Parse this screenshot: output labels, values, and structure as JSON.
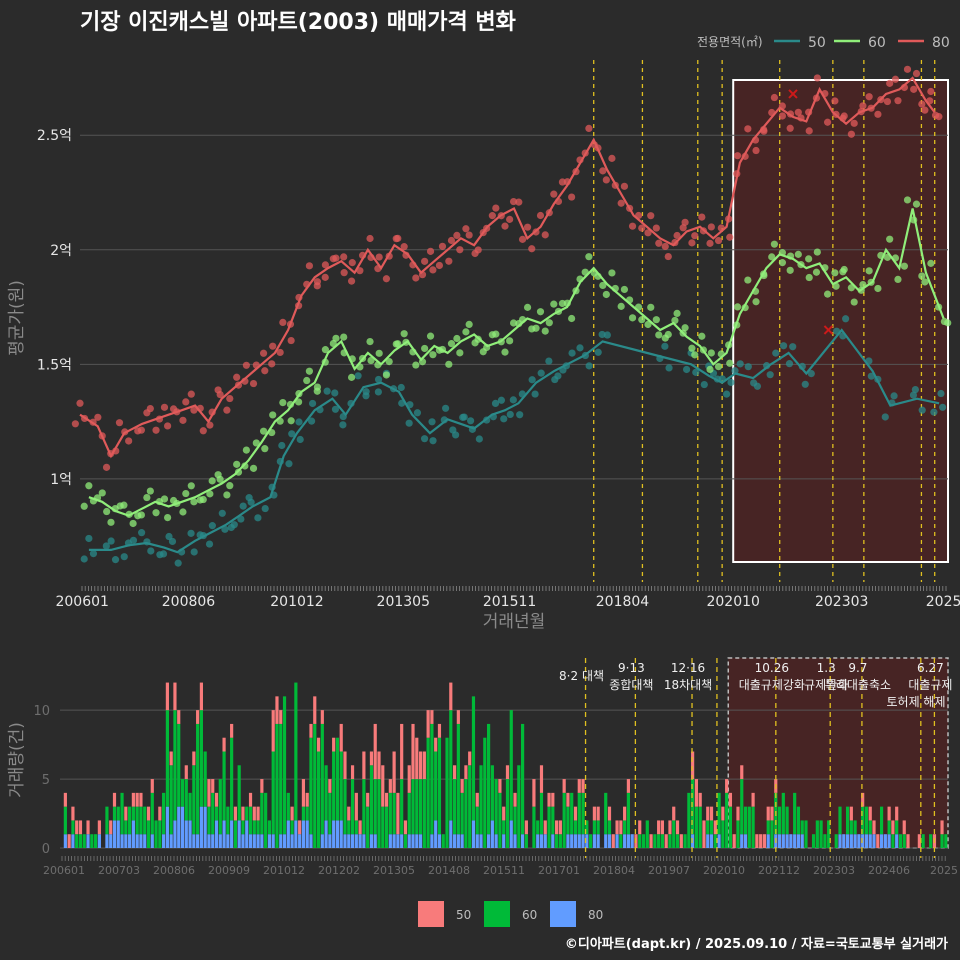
{
  "title": "기장 이진캐스빌 아파트(2003) 매매가격 변화",
  "footer": "©디아파트(dapt.kr) / 2025.09.10 / 자료=국토교통부 실거래가",
  "colors": {
    "bg": "#2b2b2b",
    "s50": "#2a8a8a",
    "s60": "#90ee7a",
    "s80": "#e05a5a",
    "b50": "#f87b7b",
    "b60": "#00ba38",
    "b80": "#619cff",
    "vline": "#e0c020",
    "grid": "#555555"
  },
  "chart_data": [
    {
      "type": "line",
      "title": "기장 이진캐스빌 아파트(2003) 매매가격 변화",
      "xlabel": "거래년월",
      "ylabel": "평균가(원)",
      "x_ticks": [
        "200601",
        "200806",
        "201012",
        "201305",
        "201511",
        "201804",
        "202010",
        "202303",
        "2025"
      ],
      "y_ticks": [
        {
          "value": 1.0,
          "label": "1억"
        },
        {
          "value": 1.5,
          "label": "1.5억"
        },
        {
          "value": 2.0,
          "label": "2억"
        },
        {
          "value": 2.5,
          "label": "2.5억"
        }
      ],
      "xlim": [
        2006.0,
        2025.6
      ],
      "ylim": [
        0.55,
        2.85
      ],
      "legend_title": "전용면적(㎡)",
      "legend_position": "top-right",
      "series": [
        {
          "name": "50",
          "x": [
            2006.2,
            2006.7,
            2007.1,
            2007.5,
            2007.9,
            2008.2,
            2008.6,
            2008.9,
            2009.3,
            2009.6,
            2009.9,
            2010.3,
            2010.6,
            2010.9,
            2011.3,
            2011.7,
            2012.0,
            2012.4,
            2012.8,
            2013.2,
            2013.5,
            2013.9,
            2014.3,
            2014.6,
            2014.9,
            2015.3,
            2015.6,
            2015.9,
            2016.3,
            2016.7,
            2017.0,
            2017.4,
            2017.8,
            2019.2,
            2019.8,
            2020.2,
            2020.5,
            2020.8,
            2021.2,
            2021.6,
            2022.0,
            2022.4,
            2023.2,
            2023.9,
            2024.3,
            2024.9,
            2025.4
          ],
          "y": [
            0.69,
            0.69,
            0.71,
            0.72,
            0.7,
            0.68,
            0.73,
            0.76,
            0.8,
            0.84,
            0.88,
            0.92,
            1.1,
            1.2,
            1.3,
            1.35,
            1.28,
            1.4,
            1.42,
            1.38,
            1.28,
            1.2,
            1.26,
            1.24,
            1.22,
            1.28,
            1.3,
            1.33,
            1.42,
            1.47,
            1.5,
            1.54,
            1.6,
            1.53,
            1.5,
            1.45,
            1.42,
            1.46,
            1.44,
            1.5,
            1.55,
            1.46,
            1.65,
            1.47,
            1.32,
            1.35,
            1.33
          ]
        },
        {
          "name": "60",
          "x": [
            2006.2,
            2006.5,
            2006.8,
            2007.1,
            2007.4,
            2007.7,
            2008.0,
            2008.3,
            2008.6,
            2008.9,
            2009.2,
            2009.5,
            2009.8,
            2010.1,
            2010.4,
            2010.7,
            2011.0,
            2011.3,
            2011.6,
            2011.9,
            2012.2,
            2012.5,
            2012.8,
            2013.1,
            2013.4,
            2013.7,
            2014.0,
            2014.3,
            2014.6,
            2014.9,
            2015.2,
            2015.5,
            2015.8,
            2016.1,
            2016.4,
            2016.7,
            2017.0,
            2017.3,
            2017.6,
            2017.9,
            2018.2,
            2018.5,
            2018.8,
            2019.1,
            2019.4,
            2019.7,
            2020.0,
            2020.3,
            2020.6,
            2020.9,
            2021.2,
            2021.5,
            2021.8,
            2022.1,
            2022.4,
            2022.7,
            2023.0,
            2023.3,
            2023.6,
            2023.9,
            2024.2,
            2024.5,
            2024.8,
            2025.1,
            2025.5
          ],
          "y": [
            0.92,
            0.9,
            0.86,
            0.84,
            0.87,
            0.9,
            0.88,
            0.9,
            0.92,
            0.95,
            0.98,
            1.02,
            1.08,
            1.16,
            1.25,
            1.3,
            1.38,
            1.42,
            1.55,
            1.6,
            1.48,
            1.55,
            1.5,
            1.56,
            1.6,
            1.52,
            1.58,
            1.55,
            1.6,
            1.63,
            1.58,
            1.6,
            1.65,
            1.7,
            1.68,
            1.72,
            1.75,
            1.86,
            1.92,
            1.85,
            1.8,
            1.75,
            1.7,
            1.65,
            1.68,
            1.62,
            1.58,
            1.5,
            1.55,
            1.72,
            1.82,
            1.92,
            1.98,
            1.96,
            1.92,
            1.94,
            1.85,
            1.88,
            1.82,
            1.86,
            2.0,
            1.92,
            2.18,
            1.9,
            1.7
          ]
        },
        {
          "name": "80",
          "x": [
            2006.0,
            2006.4,
            2006.7,
            2007.0,
            2007.4,
            2007.7,
            2008.0,
            2008.3,
            2008.6,
            2008.9,
            2009.2,
            2009.5,
            2009.8,
            2010.1,
            2010.4,
            2010.7,
            2011.0,
            2011.3,
            2011.6,
            2011.9,
            2012.2,
            2012.5,
            2012.8,
            2013.1,
            2013.4,
            2013.7,
            2014.0,
            2014.3,
            2014.6,
            2014.9,
            2015.2,
            2015.5,
            2015.8,
            2016.1,
            2016.4,
            2016.7,
            2017.0,
            2017.3,
            2017.6,
            2017.9,
            2018.2,
            2018.5,
            2018.8,
            2019.1,
            2019.4,
            2019.7,
            2020.0,
            2020.3,
            2020.6,
            2020.9,
            2021.2,
            2021.5,
            2021.8,
            2022.1,
            2022.4,
            2022.7,
            2023.0,
            2023.3,
            2023.6,
            2023.9,
            2024.2,
            2024.5,
            2024.8,
            2025.1,
            2025.3
          ],
          "y": [
            1.28,
            1.23,
            1.1,
            1.2,
            1.24,
            1.26,
            1.28,
            1.3,
            1.32,
            1.25,
            1.35,
            1.4,
            1.45,
            1.5,
            1.55,
            1.65,
            1.8,
            1.88,
            1.92,
            1.95,
            1.9,
            2.0,
            1.92,
            2.02,
            1.98,
            1.9,
            1.95,
            2.0,
            2.05,
            2.02,
            2.1,
            2.15,
            2.18,
            2.05,
            2.1,
            2.2,
            2.28,
            2.38,
            2.48,
            2.35,
            2.25,
            2.15,
            2.1,
            2.05,
            2.02,
            2.08,
            2.1,
            2.05,
            2.1,
            2.38,
            2.48,
            2.55,
            2.62,
            2.58,
            2.56,
            2.7,
            2.6,
            2.55,
            2.6,
            2.62,
            2.68,
            2.7,
            2.75,
            2.65,
            2.6
          ]
        }
      ],
      "markers_x": [
        {
          "x": 2022.1,
          "y": 2.68
        },
        {
          "x": 2022.9,
          "y": 1.65
        }
      ]
    },
    {
      "type": "bar",
      "title": "",
      "xlabel": "",
      "ylabel": "거래량(건)",
      "x_ticks": [
        "200601",
        "200703",
        "200806",
        "200909",
        "201012",
        "201202",
        "201305",
        "201408",
        "201511",
        "201701",
        "201804",
        "201907",
        "202010",
        "202112",
        "202303",
        "202406",
        "2025"
      ],
      "y_ticks": [
        0,
        5,
        10
      ],
      "ylim": [
        0,
        14
      ],
      "stacked": true,
      "legend_position": "bottom",
      "series": [
        {
          "name": "50",
          "peak_values": [
            1,
            1,
            2,
            1,
            3,
            2,
            4,
            2,
            1,
            2,
            1,
            1,
            2,
            1,
            0,
            1,
            1
          ]
        },
        {
          "name": "60",
          "peak_values": [
            2,
            3,
            8,
            7,
            12,
            6,
            5,
            9,
            8,
            4,
            3,
            2,
            5,
            4,
            3,
            2,
            1
          ]
        },
        {
          "name": "80",
          "peak_values": [
            1,
            2,
            3,
            2,
            2,
            2,
            1,
            2,
            2,
            1,
            1,
            0,
            1,
            1,
            1,
            1,
            0
          ]
        }
      ]
    }
  ],
  "policy_annotations": [
    {
      "date": 2017.6,
      "label": "8·2 대책"
    },
    {
      "date": 2018.7,
      "label": "9·13\n종합대책"
    },
    {
      "date": 2019.95,
      "label": "12·16\n18차대책"
    },
    {
      "date": 2020.5,
      "label": ""
    },
    {
      "date": 2021.8,
      "label": "10.26\n대출규제강화"
    },
    {
      "date": 2023.0,
      "label": "1.3\n규제완화"
    },
    {
      "date": 2023.7,
      "label": "9.7\n특례대출축소"
    },
    {
      "date": 2025.0,
      "label": ""
    },
    {
      "date": 2025.3,
      "label": "6.27\n대출규제"
    }
  ],
  "annotation_extra": "토허제 해제",
  "highlight": {
    "from": 2020.75,
    "to": 2025.6
  }
}
